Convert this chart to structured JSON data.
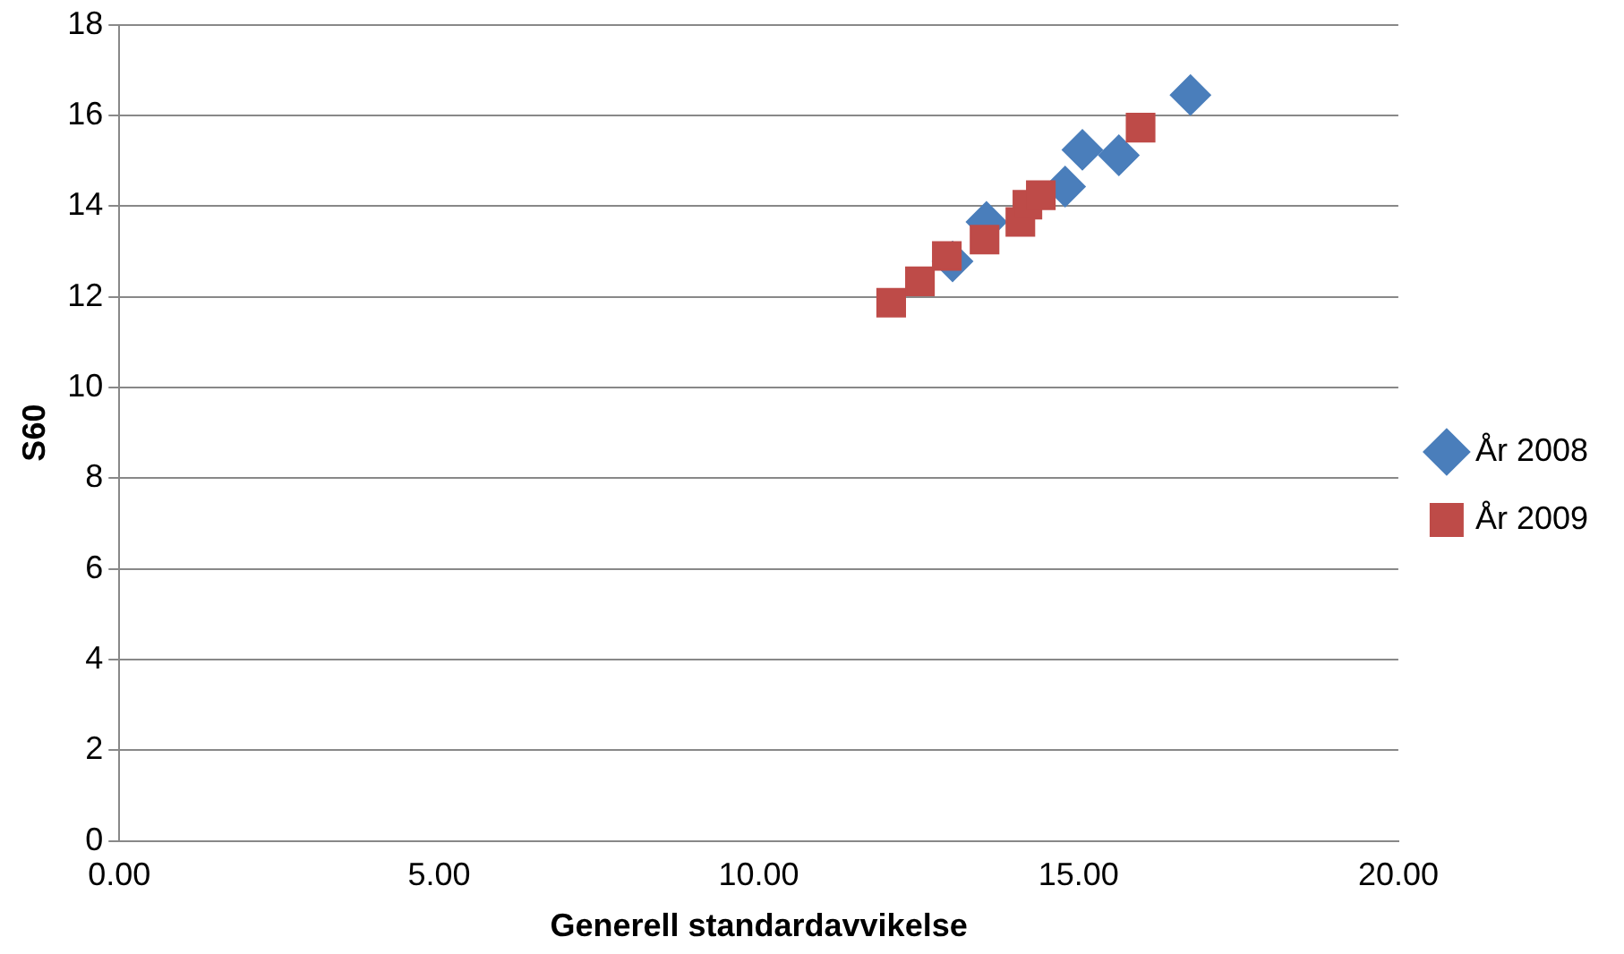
{
  "chart_data": {
    "type": "scatter",
    "xlabel": "Generell standardavvikelse",
    "ylabel": "S60",
    "xlim": [
      0,
      20
    ],
    "xticks": [
      {
        "value": 0,
        "label": "0.00"
      },
      {
        "value": 5,
        "label": "5.00"
      },
      {
        "value": 10,
        "label": "10.00"
      },
      {
        "value": 15,
        "label": "15.00"
      },
      {
        "value": 20,
        "label": "20.00"
      }
    ],
    "ylim": [
      0,
      18
    ],
    "yticks": [
      0,
      2,
      4,
      6,
      8,
      10,
      12,
      14,
      16,
      18
    ],
    "grid": "y",
    "legend": "right",
    "series": [
      {
        "name": "År 2008",
        "color": "#4a7ebb",
        "marker": "diamond",
        "x": [
          16.75,
          15.06,
          15.63,
          14.79,
          13.56,
          13.03
        ],
        "values": [
          16.45,
          15.24,
          15.12,
          14.43,
          13.65,
          12.78
        ]
      },
      {
        "name": "År 2009",
        "color": "#be4b48",
        "marker": "square",
        "x": [
          12.07,
          12.52,
          12.94,
          13.53,
          14.09,
          14.2,
          14.41,
          15.97
        ],
        "values": [
          11.87,
          12.34,
          12.9,
          13.26,
          13.65,
          14.03,
          14.24,
          15.73
        ]
      }
    ]
  }
}
